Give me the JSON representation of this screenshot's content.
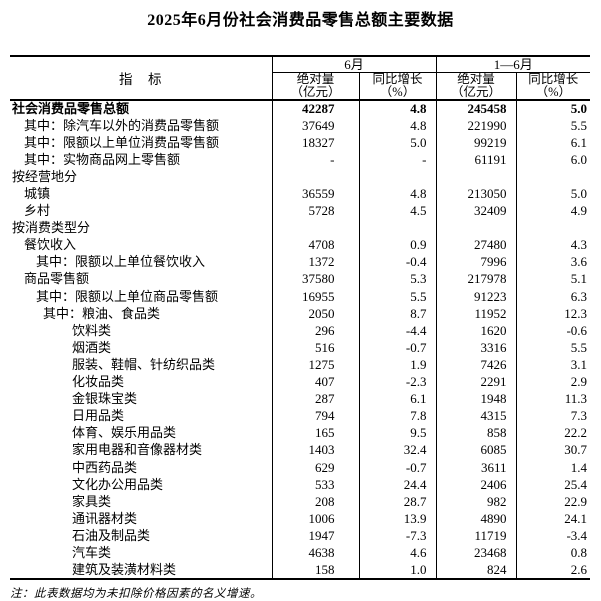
{
  "page": {
    "title": "2025年6月份社会消费品零售总额主要数据",
    "note": "注：此表数据均为未扣除价格因素的名义增速。"
  },
  "table": {
    "header": {
      "indicator": "指　标",
      "groups": [
        {
          "label": "6月",
          "cols": [
            "绝对量\n（亿元）",
            "同比增长\n（%）"
          ]
        },
        {
          "label": "1—6月",
          "cols": [
            "绝对量\n（亿元）",
            "同比增长\n（%）"
          ]
        }
      ]
    },
    "rows": [
      {
        "label": "社会消费品零售总额",
        "indent": 0,
        "bold": true,
        "values": [
          "42287",
          "4.8",
          "245458",
          "5.0"
        ]
      },
      {
        "label": "其中：除汽车以外的消费品零售额",
        "indent": 1,
        "bold": false,
        "values": [
          "37649",
          "4.8",
          "221990",
          "5.5"
        ]
      },
      {
        "label": "其中：限额以上单位消费品零售额",
        "indent": 1,
        "bold": false,
        "values": [
          "18327",
          "5.0",
          "99219",
          "6.1"
        ]
      },
      {
        "label": "其中：实物商品网上零售额",
        "indent": 1,
        "bold": false,
        "values": [
          "-",
          "-",
          "61191",
          "6.0"
        ]
      },
      {
        "label": "按经营地分",
        "indent": 0,
        "bold": false,
        "values": [
          "",
          "",
          "",
          ""
        ]
      },
      {
        "label": "城镇",
        "indent": 1,
        "bold": false,
        "values": [
          "36559",
          "4.8",
          "213050",
          "5.0"
        ]
      },
      {
        "label": "乡村",
        "indent": 1,
        "bold": false,
        "values": [
          "5728",
          "4.5",
          "32409",
          "4.9"
        ]
      },
      {
        "label": "按消费类型分",
        "indent": 0,
        "bold": false,
        "values": [
          "",
          "",
          "",
          ""
        ]
      },
      {
        "label": "餐饮收入",
        "indent": 1,
        "bold": false,
        "values": [
          "4708",
          "0.9",
          "27480",
          "4.3"
        ]
      },
      {
        "label": "其中：限额以上单位餐饮收入",
        "indent": 2,
        "bold": false,
        "values": [
          "1372",
          "-0.4",
          "7996",
          "3.6"
        ]
      },
      {
        "label": "商品零售额",
        "indent": 1,
        "bold": false,
        "values": [
          "37580",
          "5.3",
          "217978",
          "5.1"
        ]
      },
      {
        "label": "其中：限额以上单位商品零售额",
        "indent": 2,
        "bold": false,
        "values": [
          "16955",
          "5.5",
          "91223",
          "6.3"
        ]
      },
      {
        "label": "其中：粮油、食品类",
        "indent": 3,
        "bold": false,
        "values": [
          "2050",
          "8.7",
          "11952",
          "12.3"
        ]
      },
      {
        "label": "饮料类",
        "indent": 4,
        "bold": false,
        "values": [
          "296",
          "-4.4",
          "1620",
          "-0.6"
        ]
      },
      {
        "label": "烟酒类",
        "indent": 4,
        "bold": false,
        "values": [
          "516",
          "-0.7",
          "3316",
          "5.5"
        ]
      },
      {
        "label": "服装、鞋帽、针纺织品类",
        "indent": 4,
        "bold": false,
        "values": [
          "1275",
          "1.9",
          "7426",
          "3.1"
        ]
      },
      {
        "label": "化妆品类",
        "indent": 4,
        "bold": false,
        "values": [
          "407",
          "-2.3",
          "2291",
          "2.9"
        ]
      },
      {
        "label": "金银珠宝类",
        "indent": 4,
        "bold": false,
        "values": [
          "287",
          "6.1",
          "1948",
          "11.3"
        ]
      },
      {
        "label": "日用品类",
        "indent": 4,
        "bold": false,
        "values": [
          "794",
          "7.8",
          "4315",
          "7.3"
        ]
      },
      {
        "label": "体育、娱乐用品类",
        "indent": 4,
        "bold": false,
        "values": [
          "165",
          "9.5",
          "858",
          "22.2"
        ]
      },
      {
        "label": "家用电器和音像器材类",
        "indent": 4,
        "bold": false,
        "values": [
          "1403",
          "32.4",
          "6085",
          "30.7"
        ]
      },
      {
        "label": "中西药品类",
        "indent": 4,
        "bold": false,
        "values": [
          "629",
          "-0.7",
          "3611",
          "1.4"
        ]
      },
      {
        "label": "文化办公用品类",
        "indent": 4,
        "bold": false,
        "values": [
          "533",
          "24.4",
          "2406",
          "25.4"
        ]
      },
      {
        "label": "家具类",
        "indent": 4,
        "bold": false,
        "values": [
          "208",
          "28.7",
          "982",
          "22.9"
        ]
      },
      {
        "label": "通讯器材类",
        "indent": 4,
        "bold": false,
        "values": [
          "1006",
          "13.9",
          "4890",
          "24.1"
        ]
      },
      {
        "label": "石油及制品类",
        "indent": 4,
        "bold": false,
        "values": [
          "1947",
          "-7.3",
          "11719",
          "-3.4"
        ]
      },
      {
        "label": "汽车类",
        "indent": 4,
        "bold": false,
        "values": [
          "4638",
          "4.6",
          "23468",
          "0.8"
        ]
      },
      {
        "label": "建筑及装潢材料类",
        "indent": 4,
        "bold": false,
        "values": [
          "158",
          "1.0",
          "824",
          "2.6"
        ]
      }
    ]
  }
}
